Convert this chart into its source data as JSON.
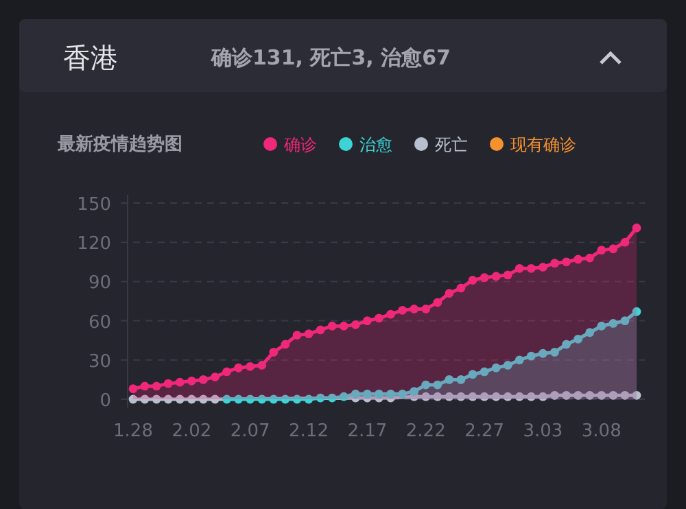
{
  "chart_data": {
    "type": "area",
    "title": "最新疫情趋势图",
    "annotations": [
      "香港",
      "确诊131, 死亡3, 治愈67"
    ],
    "categories": [
      "1.28",
      null,
      null,
      null,
      null,
      "2.02",
      null,
      null,
      null,
      null,
      "2.07",
      null,
      null,
      null,
      null,
      "2.12",
      null,
      null,
      null,
      null,
      "2.17",
      null,
      null,
      null,
      null,
      "2.22",
      null,
      null,
      null,
      null,
      "2.27",
      null,
      null,
      null,
      null,
      "3.03",
      null,
      null,
      null,
      null,
      "3.08",
      null,
      null,
      null
    ],
    "series": [
      {
        "name": "确诊",
        "color": "#f0287a",
        "values": [
          8,
          10,
          10,
          12,
          13,
          14,
          15,
          17,
          21,
          24,
          25,
          26,
          36,
          42,
          49,
          50,
          53,
          56,
          56,
          57,
          60,
          62,
          65,
          68,
          69,
          69,
          74,
          81,
          85,
          91,
          93,
          94,
          95,
          100,
          100,
          101,
          104,
          105,
          107,
          108,
          114,
          115,
          120,
          131
        ]
      },
      {
        "name": "治愈",
        "color": "#3cd4d4",
        "values": [
          null,
          null,
          null,
          null,
          null,
          null,
          null,
          null,
          0,
          0,
          0,
          0,
          0,
          0,
          0,
          0,
          1,
          1,
          2,
          4,
          4,
          4,
          4,
          4,
          6,
          11,
          11,
          15,
          15,
          19,
          21,
          24,
          26,
          30,
          33,
          35,
          36,
          42,
          46,
          51,
          56,
          58,
          60,
          67
        ]
      },
      {
        "name": "死亡",
        "color": "#b8c0d0",
        "type": "line",
        "values": [
          0,
          0,
          0,
          0,
          0,
          0,
          0,
          0,
          null,
          null,
          null,
          null,
          null,
          null,
          null,
          null,
          null,
          null,
          null,
          1,
          1,
          1,
          1,
          null,
          2,
          2,
          2,
          2,
          2,
          2,
          2,
          2,
          2,
          2,
          2,
          2,
          3,
          3,
          3,
          3,
          3,
          3,
          3,
          3
        ]
      },
      {
        "name": "现有确诊",
        "color": "#f5922f",
        "type": "line",
        "values": [
          null,
          null,
          null,
          null,
          null,
          null,
          null,
          null,
          null,
          null,
          null,
          null,
          null,
          null,
          null,
          null,
          null,
          null,
          null,
          null,
          null,
          null,
          null,
          null,
          null,
          null,
          null,
          null,
          null,
          null,
          null,
          null,
          null,
          null,
          null,
          null,
          null,
          null,
          null,
          null,
          null,
          null,
          null,
          null
        ]
      }
    ],
    "ylim": [
      0,
      150
    ],
    "yticks": [
      0,
      30,
      60,
      90,
      120,
      150
    ],
    "grid": "y",
    "legend": "top right",
    "marker": "circle",
    "line_style": "solid"
  }
}
